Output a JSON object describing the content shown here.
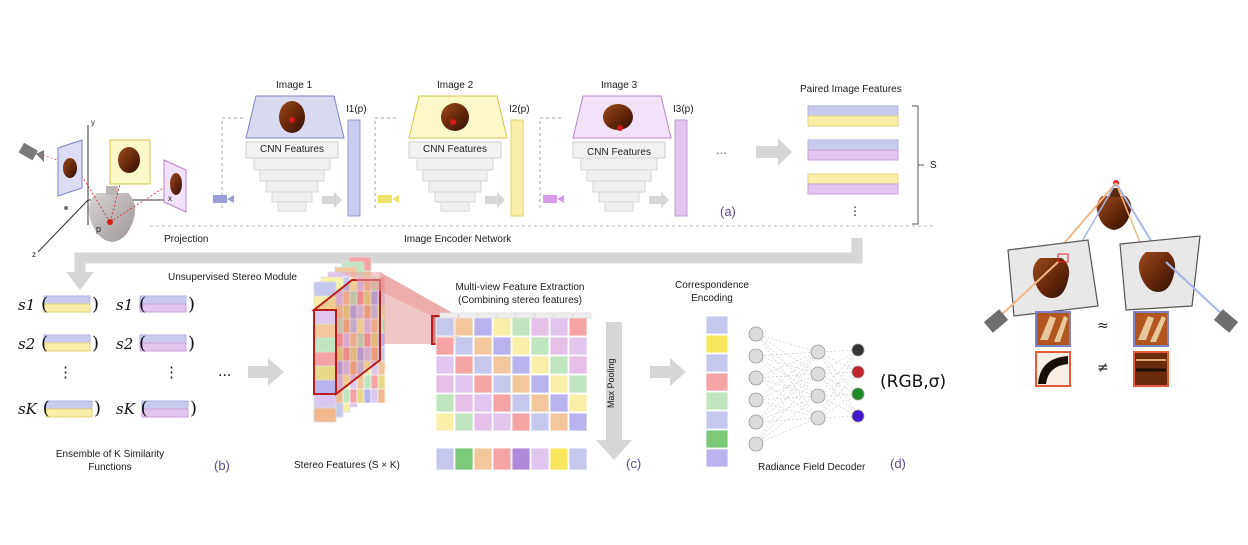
{
  "image_titles": [
    "Image 1",
    "Image 2",
    "Image 3"
  ],
  "feature_labels": [
    "I1(p)",
    "I2(p)",
    "I3(p)"
  ],
  "cnn_label": "CNN Features",
  "ellipsis": "...",
  "paired_title": "Paired Image Features",
  "s_label": "S",
  "projection_label": "Projection",
  "encoder_label": "Image Encoder Network",
  "tag_a": "(a)",
  "tag_b": "(b)",
  "tag_c": "(c)",
  "tag_d": "(d)",
  "axis": {
    "x": "x",
    "y": "y",
    "z": "z",
    "p": "p"
  },
  "stereo_module_label": "Unsupervised Stereo Module",
  "sim_functions": [
    "s1",
    "s2",
    "⋮",
    "sK"
  ],
  "ensemble_label": "Ensemble of K Similarity Functions",
  "stereo_features_label": "Stereo Features (S × K)",
  "mvfe_title": "Multi-view Feature Extraction",
  "mvfe_subtitle": "(Combining stereo features)",
  "max_pooling": "Max Pooling",
  "corr_title": "Correspondence",
  "corr_subtitle": "Encoding",
  "decoder_label": "Radiance Field Decoder",
  "output_label": "(RGB,σ)",
  "approx_symbol": "≈",
  "neq_symbol": "≠",
  "colors": {
    "blue": "#c5c8ec",
    "yellow": "#f8f0a8",
    "purple": "#e0c6ef",
    "arrow": "#d6d6d6",
    "red": "#c0262c",
    "green": "#1e8b2a",
    "indigo": "#3f18c8",
    "dark": "#333333"
  }
}
